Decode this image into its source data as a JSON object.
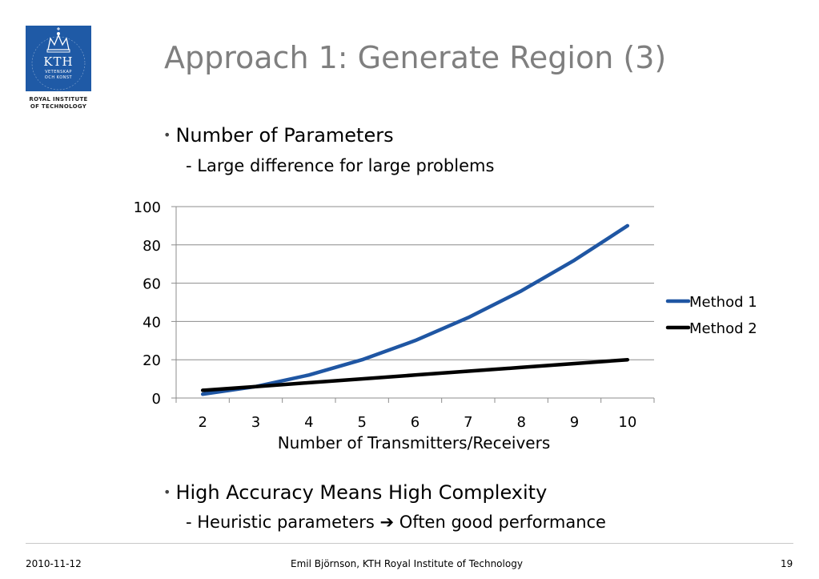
{
  "logo": {
    "name": "KTH",
    "line1": "VETENSKAP",
    "line2": "OCH KONST",
    "caption_line1": "ROYAL INSTITUTE",
    "caption_line2": "OF TECHNOLOGY",
    "color": "#1f5aa6"
  },
  "slide": {
    "title": "Approach 1: Generate Region (3)",
    "bullet1": "Number of Parameters",
    "sub1": "- Large difference for large problems",
    "bullet2": "High Accuracy Means High Complexity",
    "sub2_prefix": "- Heuristic parameters",
    "sub2_arrow": "➔",
    "sub2_suffix": "Often good performance"
  },
  "chart_data": {
    "type": "line",
    "x": [
      2,
      3,
      4,
      5,
      6,
      7,
      8,
      9,
      10
    ],
    "categories": [
      "2",
      "3",
      "4",
      "5",
      "6",
      "7",
      "8",
      "9",
      "10"
    ],
    "series": [
      {
        "name": "Method 1",
        "values": [
          2,
          6,
          12,
          20,
          30,
          42,
          56,
          72,
          90
        ],
        "color": "#1f56a3"
      },
      {
        "name": "Method 2",
        "values": [
          4,
          6,
          8,
          10,
          12,
          14,
          16,
          18,
          20
        ],
        "color": "#000000"
      }
    ],
    "xlabel": "Number of Transmitters/Receivers",
    "ylabel": "",
    "ylim": [
      0,
      100
    ],
    "yticks": [
      0,
      20,
      40,
      60,
      80,
      100
    ],
    "grid": true,
    "legend": "right"
  },
  "footer": {
    "date": "2010-11-12",
    "author": "Emil Björnson, KTH Royal Institute of Technology",
    "page": "19"
  }
}
